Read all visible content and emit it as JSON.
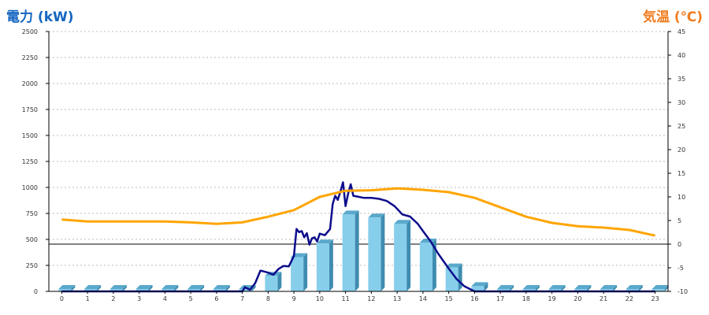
{
  "chart_data": {
    "type": "bar",
    "ylabel_left": "電力 (kW)",
    "ylabel_right": "気温 (℃)",
    "categories": [
      "0",
      "1",
      "2",
      "3",
      "4",
      "5",
      "6",
      "7",
      "8",
      "9",
      "10",
      "11",
      "12",
      "13",
      "14",
      "15",
      "16",
      "17",
      "18",
      "19",
      "20",
      "21",
      "22",
      "23"
    ],
    "ylim_left": [
      0,
      2500
    ],
    "yticks_left": [
      0,
      250,
      500,
      750,
      1000,
      1250,
      1500,
      1750,
      2000,
      2250,
      2500
    ],
    "ylim_right": [
      -10,
      45
    ],
    "yticks_right": [
      -10,
      -5,
      0,
      5,
      10,
      15,
      20,
      25,
      30,
      35,
      40,
      45
    ],
    "grid": true,
    "series": [
      {
        "kind": "bar",
        "axis": "left",
        "color": "#87ceeb",
        "values": [
          0,
          0,
          0,
          0,
          0,
          0,
          0,
          0,
          150,
          330,
          460,
          740,
          710,
          650,
          470,
          230,
          50,
          0,
          0,
          0,
          0,
          0,
          0,
          0
        ]
      },
      {
        "kind": "line",
        "axis": "left",
        "color": "#0d0d8c",
        "x": [
          0,
          1,
          2,
          3,
          4,
          5,
          6,
          7,
          7.1,
          7.3,
          7.5,
          7.7,
          8,
          8.2,
          8.4,
          8.6,
          8.8,
          9,
          9.1,
          9.2,
          9.3,
          9.4,
          9.5,
          9.6,
          9.7,
          9.8,
          9.9,
          10,
          10.2,
          10.4,
          10.5,
          10.6,
          10.7,
          10.8,
          10.9,
          11,
          11.1,
          11.2,
          11.3,
          11.5,
          11.7,
          12,
          12.3,
          12.6,
          12.9,
          13.2,
          13.5,
          13.8,
          14,
          14.3,
          14.6,
          15,
          15.3,
          15.6,
          16,
          16.5,
          17,
          18,
          19,
          20,
          21,
          22,
          23
        ],
        "y": [
          0,
          0,
          0,
          0,
          0,
          0,
          0,
          0,
          40,
          15,
          80,
          200,
          180,
          160,
          215,
          245,
          240,
          340,
          600,
          570,
          580,
          520,
          560,
          450,
          510,
          520,
          480,
          555,
          540,
          600,
          840,
          920,
          880,
          960,
          1050,
          820,
          940,
          1030,
          920,
          910,
          900,
          900,
          890,
          870,
          820,
          740,
          720,
          650,
          580,
          480,
          360,
          220,
          120,
          50,
          0,
          0,
          0,
          0,
          0,
          0,
          0,
          0,
          0
        ]
      },
      {
        "kind": "line",
        "axis": "right",
        "color": "#ffa500",
        "x": [
          0,
          1,
          2,
          3,
          4,
          5,
          6,
          7,
          8,
          9,
          10,
          11,
          12,
          13,
          14,
          15,
          16,
          17,
          18,
          19,
          20,
          21,
          22,
          23
        ],
        "y": [
          5.2,
          4.8,
          4.8,
          4.8,
          4.8,
          4.6,
          4.3,
          4.6,
          5.8,
          7.2,
          10,
          11.3,
          11.4,
          11.8,
          11.5,
          11.0,
          9.8,
          7.8,
          5.8,
          4.5,
          3.8,
          3.5,
          3.0,
          1.8
        ]
      }
    ]
  }
}
